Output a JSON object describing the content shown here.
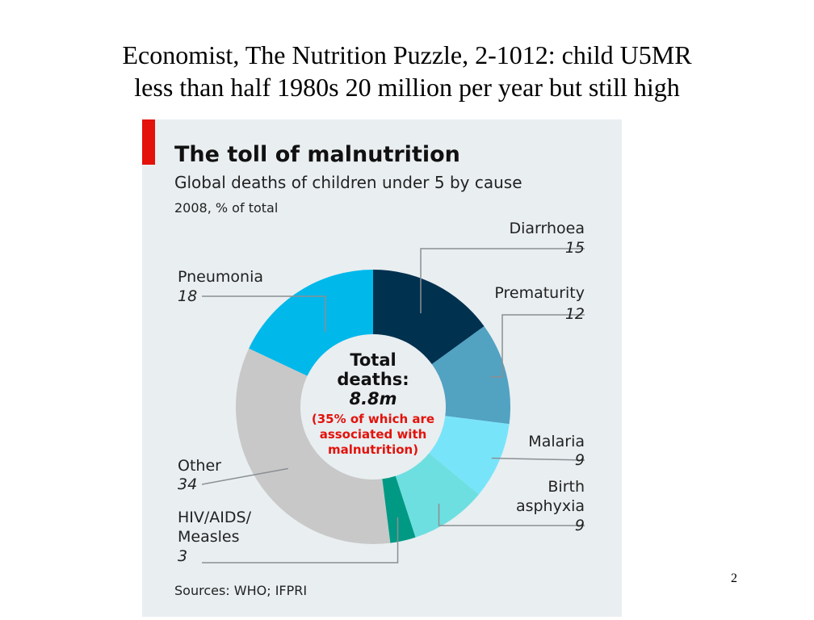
{
  "slide": {
    "title_line1": "Economist, The Nutrition Puzzle, 2-1012: child U5MR",
    "title_line2": "less than half 1980s 20 million per year but still high",
    "page_number": "2"
  },
  "colors": {
    "panel_background": "#e9eef1",
    "accent_red": "#e3120b",
    "diarrhoea": "#00314f",
    "prematurity": "#52a2c2",
    "malaria": "#78e4fa",
    "birth_asphyxia": "#6edfe0",
    "hiv_aids_measles": "#009a84",
    "other": "#c8c8c8",
    "pneumonia": "#00b8ea",
    "leader_line": "#8a8f93"
  },
  "chart_data": {
    "type": "pie",
    "title": "The toll of malnutrition",
    "subtitle": "Global deaths of children under 5 by cause",
    "note": "2008, % of total",
    "source": "Sources: WHO; IFPRI",
    "unit": "% of total",
    "center": {
      "total_label": "Total",
      "total_label2": "deaths:",
      "total_value": "8.8m",
      "note_line1": "(35% of which are",
      "note_line2": "associated with",
      "note_line3": "malnutrition)"
    },
    "slices": [
      {
        "label": "Diarrhoea",
        "value": 15
      },
      {
        "label": "Prematurity",
        "value": 12
      },
      {
        "label": "Malaria",
        "value": 9
      },
      {
        "label": "Birth asphyxia",
        "label_line1": "Birth",
        "label_line2": "asphyxia",
        "value": 9
      },
      {
        "label": "HIV/AIDS/ Measles",
        "label_line1": "HIV/AIDS/",
        "label_line2": "Measles",
        "value": 3
      },
      {
        "label": "Other",
        "value": 34
      },
      {
        "label": "Pneumonia",
        "value": 18
      }
    ]
  }
}
